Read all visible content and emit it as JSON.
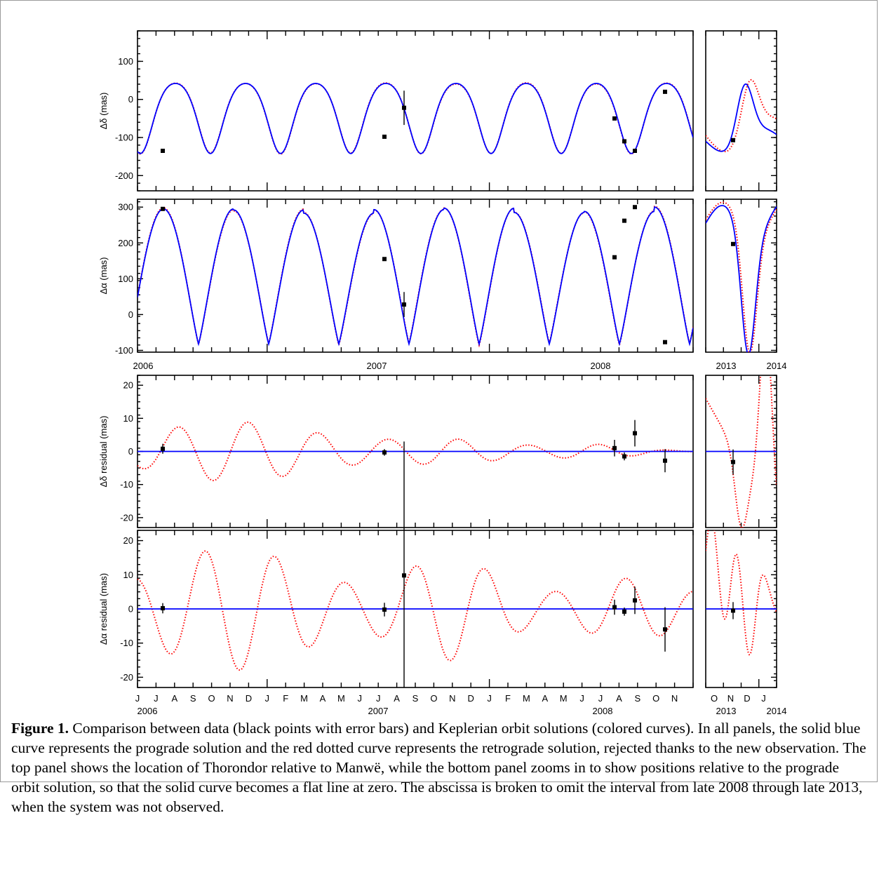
{
  "chart_data": {
    "type": "line",
    "series_names": [
      "prograde solution",
      "retrograde solution",
      "data"
    ],
    "colors": {
      "prograde": "#0000ff",
      "retrograde": "#ff0000",
      "data": "#000000"
    },
    "panels": [
      {
        "id": "dec",
        "ylabel": "Δδ (mas)",
        "ylim": [
          -240,
          180
        ],
        "yticks": [
          -200,
          -100,
          0,
          100
        ],
        "kind": "orbit",
        "left_x_labels": [
          {
            "t": 190,
            "text": "2006"
          },
          {
            "t": 523,
            "text": "2007"
          },
          {
            "t": 842,
            "text": "2008"
          }
        ],
        "right_x_labels": [
          {
            "t": 1035,
            "text": "2013"
          },
          {
            "t": 1107,
            "text": "2014"
          }
        ]
      },
      {
        "id": "ra",
        "ylabel": "Δα (mas)",
        "ylim": [
          -105,
          322
        ],
        "yticks": [
          -100,
          0,
          100,
          200,
          300
        ],
        "kind": "orbit"
      },
      {
        "id": "dec_res",
        "ylabel": "Δδ residual (mas)",
        "ylim": [
          -23,
          23
        ],
        "yticks": [
          -20,
          -10,
          0,
          10,
          20
        ],
        "kind": "residual"
      },
      {
        "id": "ra_res",
        "ylabel": "Δα residual (mas)",
        "ylim": [
          -23,
          23
        ],
        "yticks": [
          -20,
          -10,
          0,
          10,
          20
        ],
        "kind": "residual"
      }
    ],
    "x_axis": {
      "left_month_labels": [
        "J",
        "J",
        "A",
        "S",
        "O",
        "N",
        "D",
        "J",
        "F",
        "M",
        "A",
        "M",
        "J",
        "J",
        "A",
        "S",
        "O",
        "N",
        "D",
        "J",
        "F",
        "M",
        "A",
        "M",
        "J",
        "J",
        "A",
        "S",
        "O",
        "N"
      ],
      "right_month_labels": [
        "O",
        "N",
        "D",
        "J"
      ],
      "left_year_labels": [
        "2006",
        "2007",
        "2008"
      ],
      "right_year_labels": [
        "2013",
        "2014"
      ]
    },
    "observations": [
      {
        "panel": "dec",
        "x": 232,
        "y": -135,
        "err": 2
      },
      {
        "panel": "dec",
        "x": 548,
        "y": -98,
        "err": 3
      },
      {
        "panel": "dec",
        "x": 576,
        "y": -22,
        "err": 45
      },
      {
        "panel": "dec",
        "x": 876,
        "y": -50,
        "err": 3
      },
      {
        "panel": "dec",
        "x": 890,
        "y": -110,
        "err": 3
      },
      {
        "panel": "dec",
        "x": 905,
        "y": -135,
        "err": 3
      },
      {
        "panel": "dec",
        "x": 948,
        "y": 20,
        "err": 3
      },
      {
        "panel": "dec",
        "x": 1045,
        "y": -107,
        "err": 3
      },
      {
        "panel": "ra",
        "x": 232,
        "y": 295,
        "err": 2
      },
      {
        "panel": "ra",
        "x": 548,
        "y": 155,
        "err": 3
      },
      {
        "panel": "ra",
        "x": 576,
        "y": 28,
        "err": 35
      },
      {
        "panel": "ra",
        "x": 876,
        "y": 160,
        "err": 3
      },
      {
        "panel": "ra",
        "x": 890,
        "y": 262,
        "err": 3
      },
      {
        "panel": "ra",
        "x": 905,
        "y": 300,
        "err": 3
      },
      {
        "panel": "ra",
        "x": 948,
        "y": -77,
        "err": 3
      },
      {
        "panel": "ra",
        "x": 1045,
        "y": 197,
        "err": 3
      },
      {
        "panel": "dec_res",
        "x": 232,
        "y": 0.8,
        "err": 1.5
      },
      {
        "panel": "dec_res",
        "x": 548,
        "y": -0.3,
        "err": 1.0
      },
      {
        "panel": "dec_res",
        "x": 576,
        "y": -35,
        "err": 38
      },
      {
        "panel": "dec_res",
        "x": 876,
        "y": 1.0,
        "err": 2.5
      },
      {
        "panel": "dec_res",
        "x": 890,
        "y": -1.5,
        "err": 1.2
      },
      {
        "panel": "dec_res",
        "x": 905,
        "y": 5.5,
        "err": 4.0
      },
      {
        "panel": "dec_res",
        "x": 948,
        "y": -2.8,
        "err": 3.5
      },
      {
        "panel": "dec_res",
        "x": 1045,
        "y": -3.2,
        "err": 3.8
      },
      {
        "panel": "ra_res",
        "x": 232,
        "y": 0.2,
        "err": 1.5
      },
      {
        "panel": "ra_res",
        "x": 548,
        "y": -0.2,
        "err": 2.0
      },
      {
        "panel": "ra_res",
        "x": 576,
        "y": 9.8,
        "err": 38
      },
      {
        "panel": "ra_res",
        "x": 876,
        "y": 0.5,
        "err": 2.2
      },
      {
        "panel": "ra_res",
        "x": 890,
        "y": -0.8,
        "err": 1.2
      },
      {
        "panel": "ra_res",
        "x": 905,
        "y": 2.5,
        "err": 4.0
      },
      {
        "panel": "ra_res",
        "x": 948,
        "y": -6.0,
        "err": 6.5
      },
      {
        "panel": "ra_res",
        "x": 1045,
        "y": -0.5,
        "err": 2.5
      }
    ]
  },
  "caption": {
    "label": "Figure 1.",
    "text": "  Comparison between data (black points with error bars) and Keplerian orbit solutions (colored curves).  In all panels, the solid blue curve represents the prograde solution and the red dotted curve represents the retrograde solution, rejected thanks to the new observation.  The top panel shows the location of Thorondor relative to Manwë, while the bottom panel zooms in to show positions relative to the prograde orbit solution, so that the solid curve becomes a flat line at zero.  The abscissa is broken to omit the interval from late 2008 through late 2013, when the system was not observed."
  }
}
